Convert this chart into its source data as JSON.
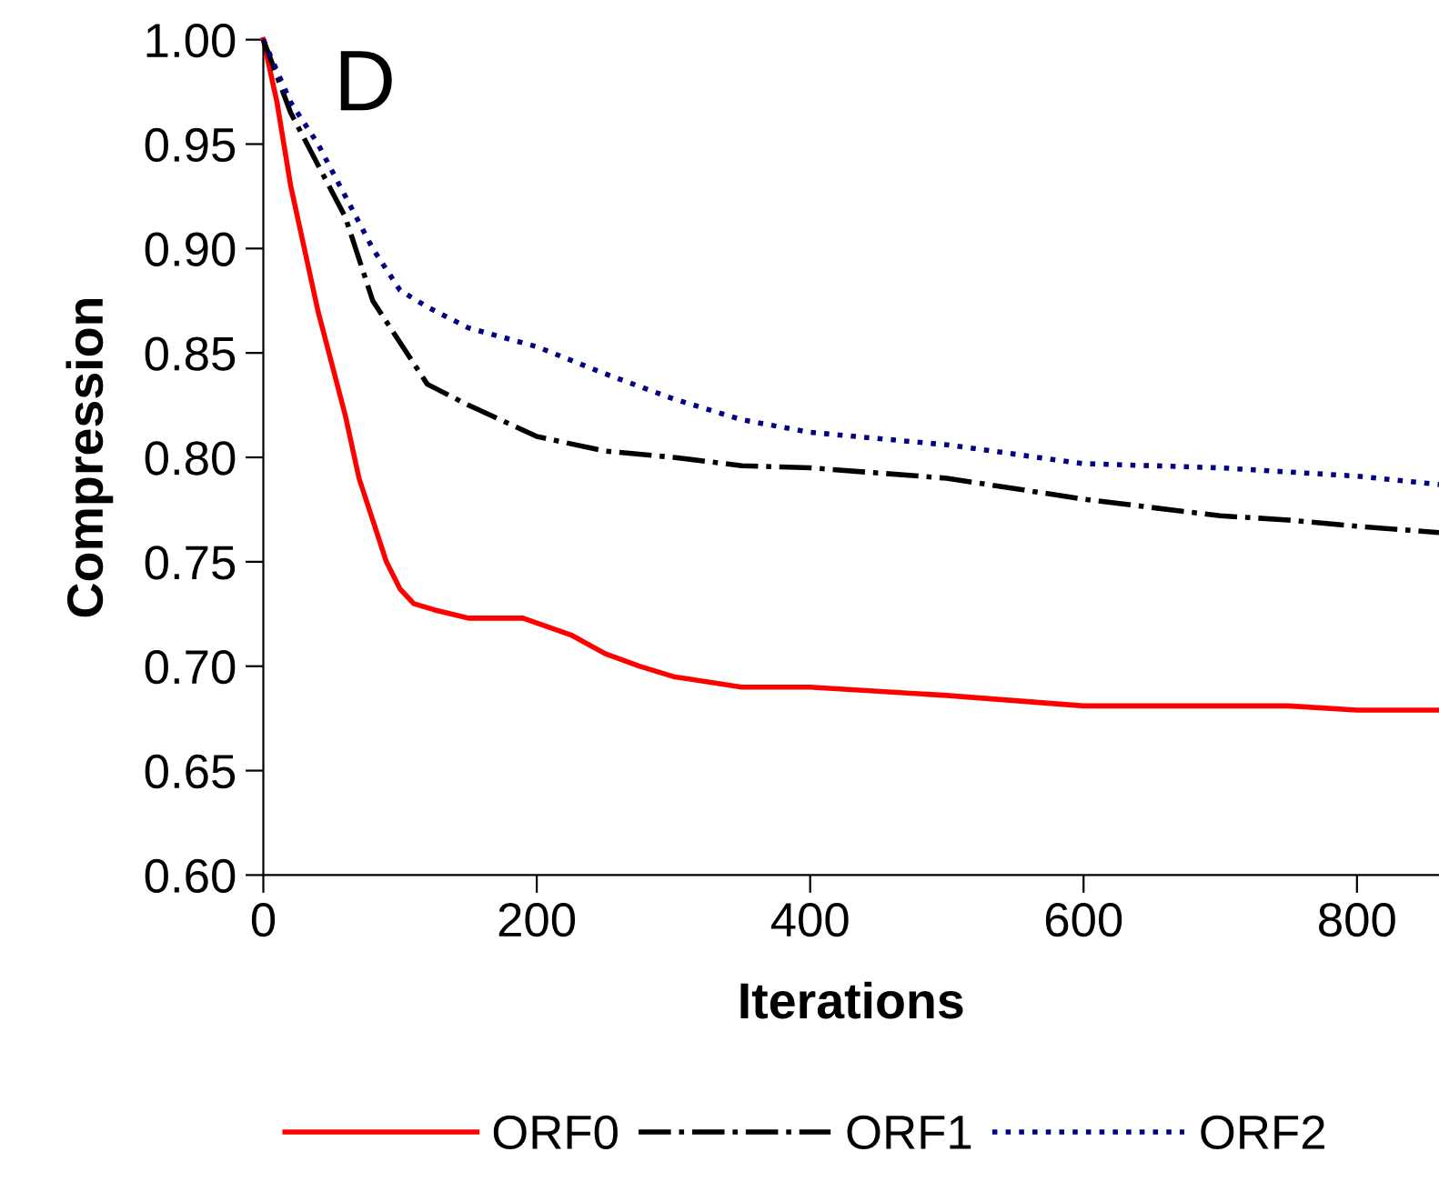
{
  "chart_data": {
    "type": "line",
    "xlabel": "Iterations",
    "ylabel": "Compression",
    "annotations": [
      "D"
    ],
    "xlim": [
      0,
      860
    ],
    "xticks": [
      0,
      200,
      400,
      600,
      800
    ],
    "ylim": [
      0.6,
      1.0
    ],
    "yticks": [
      {
        "value": 0.6,
        "label": "0.60"
      },
      {
        "value": 0.65,
        "label": "0.65"
      },
      {
        "value": 0.7,
        "label": "0.70"
      },
      {
        "value": 0.75,
        "label": "0.75"
      },
      {
        "value": 0.8,
        "label": "0.80"
      },
      {
        "value": 0.85,
        "label": "0.85"
      },
      {
        "value": 0.9,
        "label": "0.90"
      },
      {
        "value": 0.95,
        "label": "0.95"
      },
      {
        "value": 1.0,
        "label": "1.00"
      }
    ],
    "grid": false,
    "legend": "bottom",
    "marker": "none",
    "series": [
      {
        "name": "ORF0",
        "color": "#ff0000",
        "line_style": "solid",
        "x": [
          0,
          10,
          20,
          40,
          60,
          70,
          80,
          90,
          100,
          110,
          125,
          150,
          190,
          225,
          250,
          275,
          300,
          350,
          400,
          500,
          600,
          750,
          800,
          860
        ],
        "values": [
          1.0,
          0.97,
          0.93,
          0.87,
          0.82,
          0.79,
          0.77,
          0.75,
          0.737,
          0.73,
          0.727,
          0.723,
          0.723,
          0.715,
          0.706,
          0.7,
          0.695,
          0.69,
          0.69,
          0.686,
          0.681,
          0.681,
          0.679,
          0.679
        ]
      },
      {
        "name": "ORF1",
        "color": "#000000",
        "line_style": "dashdot",
        "x": [
          0,
          20,
          40,
          60,
          80,
          100,
          120,
          150,
          200,
          250,
          300,
          350,
          400,
          500,
          600,
          700,
          750,
          800,
          860
        ],
        "values": [
          1.0,
          0.965,
          0.94,
          0.915,
          0.875,
          0.855,
          0.835,
          0.825,
          0.81,
          0.803,
          0.8,
          0.796,
          0.795,
          0.79,
          0.78,
          0.772,
          0.77,
          0.767,
          0.764
        ]
      },
      {
        "name": "ORF2",
        "color": "#000080",
        "line_style": "dotted",
        "x": [
          0,
          20,
          40,
          60,
          80,
          100,
          120,
          150,
          200,
          250,
          300,
          350,
          400,
          500,
          600,
          700,
          800,
          860
        ],
        "values": [
          1.0,
          0.97,
          0.95,
          0.925,
          0.9,
          0.88,
          0.872,
          0.862,
          0.853,
          0.84,
          0.828,
          0.818,
          0.812,
          0.806,
          0.797,
          0.795,
          0.791,
          0.787
        ]
      }
    ]
  }
}
